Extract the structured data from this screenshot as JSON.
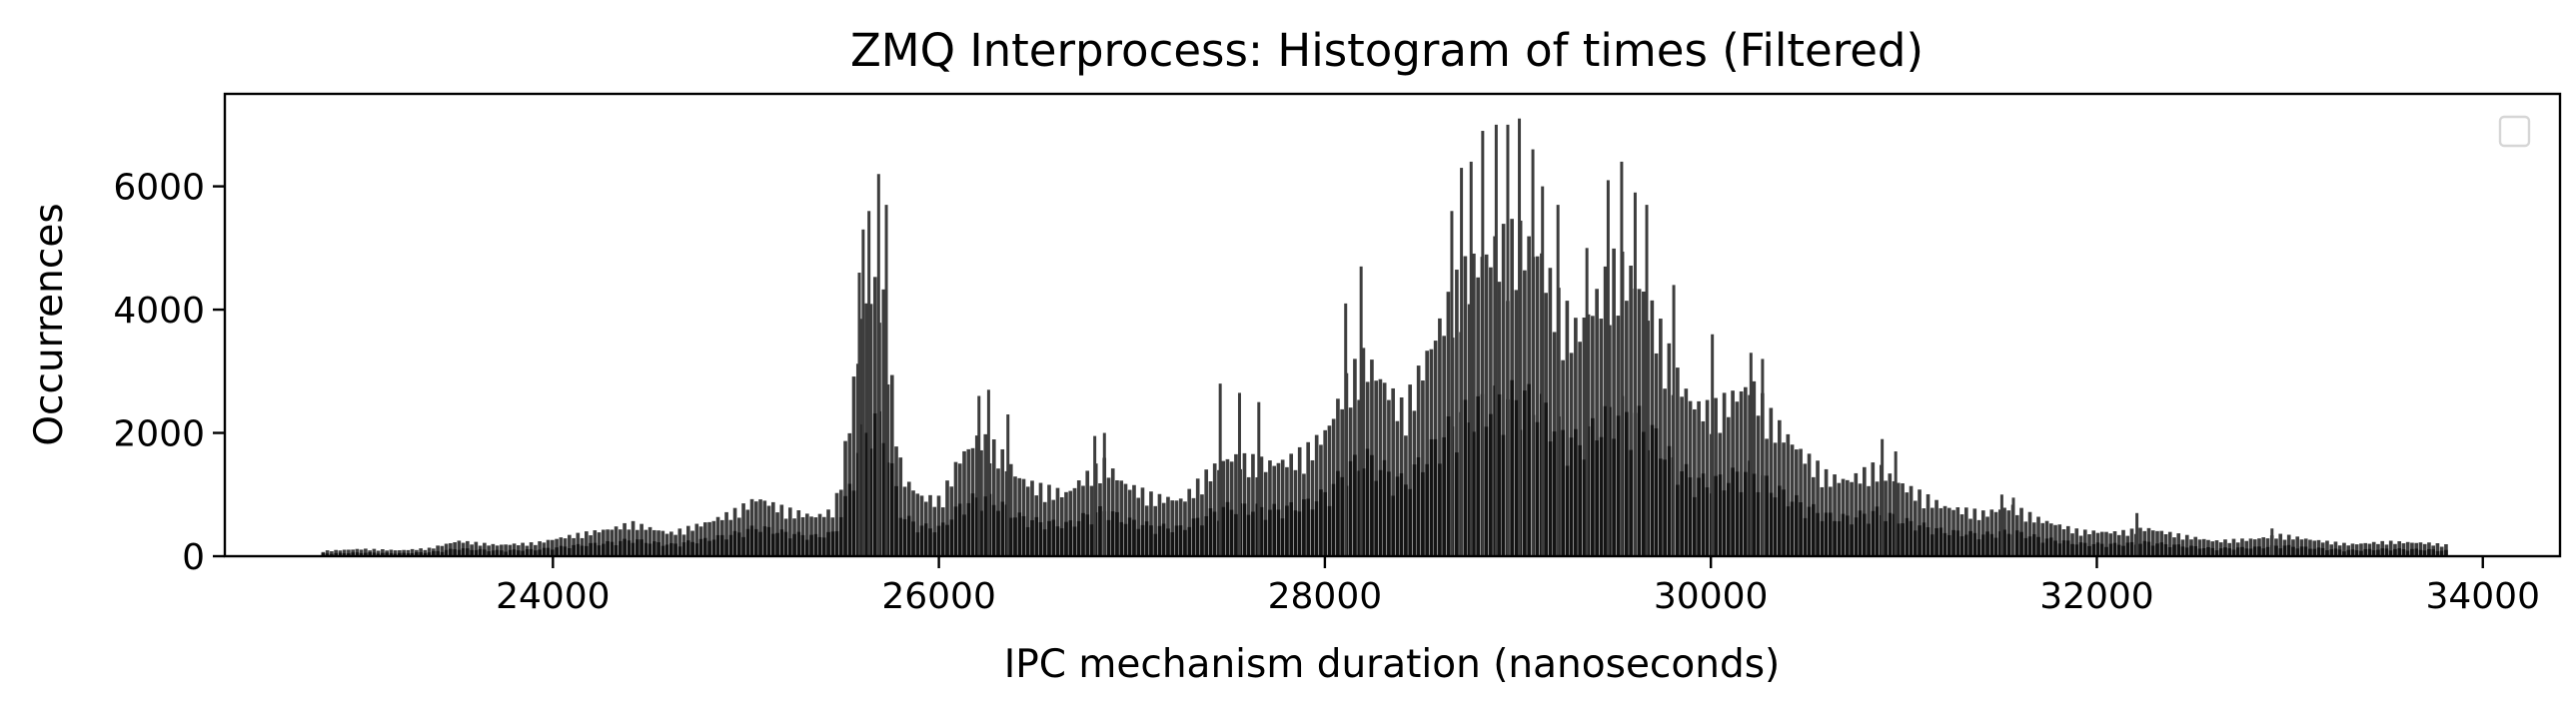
{
  "chart_data": {
    "type": "bar",
    "title": "ZMQ Interprocess: Histogram of times (Filtered)",
    "xlabel": "IPC mechanism duration (nanoseconds)",
    "ylabel": "Occurrences",
    "xlim": [
      22300,
      34400
    ],
    "ylim": [
      0,
      7500
    ],
    "xticks": [
      24000,
      26000,
      28000,
      30000,
      32000,
      34000
    ],
    "yticks": [
      0,
      2000,
      4000,
      6000
    ],
    "grid": false,
    "legend": "top-right, empty",
    "colors": {
      "bar_high": "#3d3d3d",
      "bar_low": "#141414"
    },
    "bin_width_ns": 22,
    "envelope_points": [
      [
        22800,
        80
      ],
      [
        23000,
        110
      ],
      [
        23200,
        90
      ],
      [
        23350,
        120
      ],
      [
        23500,
        230
      ],
      [
        23700,
        170
      ],
      [
        23900,
        200
      ],
      [
        24100,
        320
      ],
      [
        24300,
        420
      ],
      [
        24400,
        500
      ],
      [
        24500,
        420
      ],
      [
        24600,
        350
      ],
      [
        24800,
        520
      ],
      [
        24950,
        700
      ],
      [
        25050,
        880
      ],
      [
        25200,
        700
      ],
      [
        25350,
        600
      ],
      [
        25450,
        700
      ],
      [
        25500,
        1500
      ],
      [
        25550,
        2600
      ],
      [
        25600,
        3700
      ],
      [
        25650,
        4100
      ],
      [
        25700,
        3900
      ],
      [
        25750,
        2500
      ],
      [
        25800,
        1200
      ],
      [
        25900,
        900
      ],
      [
        26000,
        850
      ],
      [
        26100,
        1500
      ],
      [
        26200,
        1800
      ],
      [
        26300,
        1600
      ],
      [
        26400,
        1200
      ],
      [
        26500,
        1050
      ],
      [
        26650,
        950
      ],
      [
        26750,
        1200
      ],
      [
        26850,
        1400
      ],
      [
        26950,
        1100
      ],
      [
        27100,
        900
      ],
      [
        27250,
        850
      ],
      [
        27400,
        1300
      ],
      [
        27500,
        1500
      ],
      [
        27600,
        1450
      ],
      [
        27700,
        1400
      ],
      [
        27800,
        1450
      ],
      [
        27900,
        1600
      ],
      [
        28000,
        1900
      ],
      [
        28100,
        2600
      ],
      [
        28200,
        3000
      ],
      [
        28300,
        2600
      ],
      [
        28400,
        2200
      ],
      [
        28500,
        2900
      ],
      [
        28600,
        3600
      ],
      [
        28700,
        4200
      ],
      [
        28800,
        4500
      ],
      [
        28900,
        4700
      ],
      [
        29000,
        4800
      ],
      [
        29100,
        4600
      ],
      [
        29200,
        3800
      ],
      [
        29300,
        3400
      ],
      [
        29400,
        3900
      ],
      [
        29500,
        4400
      ],
      [
        29600,
        4200
      ],
      [
        29700,
        3600
      ],
      [
        29800,
        2800
      ],
      [
        29900,
        2300
      ],
      [
        30000,
        2200
      ],
      [
        30100,
        2400
      ],
      [
        30200,
        2600
      ],
      [
        30300,
        2100
      ],
      [
        30450,
        1600
      ],
      [
        30600,
        1200
      ],
      [
        30700,
        1150
      ],
      [
        30850,
        1350
      ],
      [
        31000,
        1050
      ],
      [
        31200,
        750
      ],
      [
        31400,
        650
      ],
      [
        31550,
        750
      ],
      [
        31700,
        550
      ],
      [
        31900,
        380
      ],
      [
        32100,
        360
      ],
      [
        32250,
        420
      ],
      [
        32400,
        330
      ],
      [
        32600,
        230
      ],
      [
        32800,
        260
      ],
      [
        32950,
        320
      ],
      [
        33100,
        250
      ],
      [
        33300,
        180
      ],
      [
        33500,
        220
      ],
      [
        33700,
        200
      ],
      [
        33800,
        170
      ]
    ],
    "spikes": [
      [
        25600,
        5300
      ],
      [
        25630,
        5600
      ],
      [
        25680,
        6200
      ],
      [
        25720,
        5700
      ],
      [
        25580,
        4600
      ],
      [
        26250,
        2700
      ],
      [
        26200,
        2600
      ],
      [
        26350,
        2300
      ],
      [
        26850,
        2000
      ],
      [
        26800,
        1950
      ],
      [
        27450,
        2800
      ],
      [
        27550,
        2650
      ],
      [
        27650,
        2500
      ],
      [
        28180,
        4700
      ],
      [
        28100,
        4100
      ],
      [
        28650,
        5600
      ],
      [
        28700,
        6300
      ],
      [
        28750,
        6400
      ],
      [
        28810,
        6900
      ],
      [
        28880,
        7000
      ],
      [
        28940,
        7000
      ],
      [
        29000,
        7100
      ],
      [
        29070,
        6600
      ],
      [
        29120,
        6000
      ],
      [
        29200,
        5700
      ],
      [
        29350,
        5000
      ],
      [
        29460,
        6100
      ],
      [
        29530,
        6400
      ],
      [
        29600,
        5900
      ],
      [
        29660,
        5700
      ],
      [
        29800,
        4400
      ],
      [
        30000,
        3600
      ],
      [
        30200,
        3300
      ],
      [
        30260,
        3200
      ],
      [
        30880,
        1900
      ],
      [
        30950,
        1700
      ],
      [
        31500,
        1000
      ],
      [
        31560,
        950
      ],
      [
        32200,
        700
      ],
      [
        32900,
        450
      ]
    ]
  }
}
